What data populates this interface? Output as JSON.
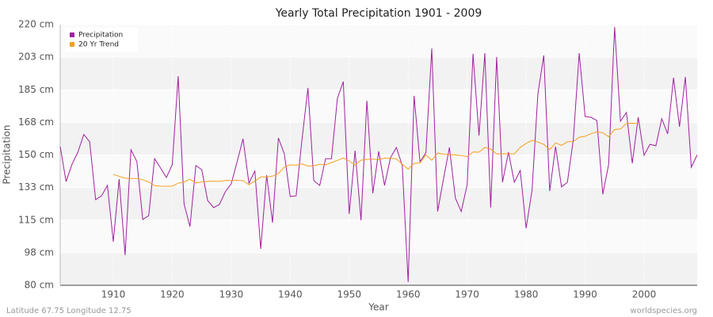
{
  "chart_data": {
    "type": "line",
    "title": "Yearly Total Precipitation 1901 - 2009",
    "xlabel": "Year",
    "ylabel": "Precipitation",
    "footer_left": "Latitude 67.75 Longitude 12.75",
    "footer_right": "worldspecies.org",
    "legend": "upper left",
    "grid": true,
    "x": [
      1901,
      1902,
      1903,
      1904,
      1905,
      1906,
      1907,
      1908,
      1909,
      1910,
      1911,
      1912,
      1913,
      1914,
      1915,
      1916,
      1917,
      1918,
      1919,
      1920,
      1921,
      1922,
      1923,
      1924,
      1925,
      1926,
      1927,
      1928,
      1929,
      1930,
      1931,
      1932,
      1933,
      1934,
      1935,
      1936,
      1937,
      1938,
      1939,
      1940,
      1941,
      1942,
      1943,
      1944,
      1945,
      1946,
      1947,
      1948,
      1949,
      1950,
      1951,
      1952,
      1953,
      1954,
      1955,
      1956,
      1957,
      1958,
      1959,
      1960,
      1961,
      1962,
      1963,
      1964,
      1965,
      1966,
      1967,
      1968,
      1969,
      1970,
      1971,
      1972,
      1973,
      1974,
      1975,
      1976,
      1977,
      1978,
      1979,
      1980,
      1981,
      1982,
      1983,
      1984,
      1985,
      1986,
      1987,
      1988,
      1989,
      1990,
      1991,
      1992,
      1993,
      1994,
      1995,
      1996,
      1997,
      1998,
      1999,
      2000,
      2001,
      2002,
      2003,
      2004,
      2005,
      2006,
      2007,
      2008,
      2009
    ],
    "series": [
      {
        "name": "Precipitation",
        "color": "#a020a0",
        "values": [
          154.5,
          135.7,
          145,
          151.5,
          161,
          157,
          126,
          128,
          133.6,
          103.4,
          137,
          96.2,
          152.8,
          146.4,
          115.3,
          117.4,
          148,
          143,
          137.9,
          144.7,
          192.3,
          123.8,
          111.5,
          144.3,
          142.1,
          125.5,
          121.7,
          123.4,
          130.2,
          134.5,
          146.4,
          158.7,
          134.9,
          141.3,
          99.6,
          139.1,
          113.6,
          159.1,
          150.6,
          127.7,
          128,
          158.3,
          186,
          136.2,
          133.6,
          148,
          148,
          180.4,
          189.4,
          118.3,
          152.3,
          114.9,
          179.1,
          129.4,
          151.9,
          133.6,
          148.5,
          154,
          144.3,
          81.7,
          181.7,
          146.4,
          151.1,
          207.2,
          119.6,
          137.4,
          154,
          126.8,
          119.6,
          134,
          204.3,
          160.4,
          204.7,
          121.7,
          202.6,
          135.3,
          151.5,
          135.3,
          141.7,
          110.6,
          131.1,
          183,
          203.4,
          130.6,
          154.5,
          132.8,
          135.3,
          158.3,
          204.7,
          170.6,
          170.2,
          168.5,
          128.9,
          145,
          218.7,
          168.1,
          172.8,
          145.5,
          170.2,
          149.8,
          155.7,
          154.9,
          169.4,
          161.3,
          191.5,
          165.1,
          191.9,
          143.4,
          150
        ]
      },
      {
        "name": "20 Yr Trend",
        "color": "#f5a020",
        "values": [
          null,
          null,
          null,
          null,
          null,
          null,
          null,
          null,
          null,
          139.5,
          138.5,
          137.5,
          137.3,
          137.3,
          136.7,
          135.5,
          133.5,
          133.2,
          133.2,
          133.2,
          134.8,
          135.5,
          137,
          135,
          135.5,
          135.8,
          135.9,
          135.8,
          136.3,
          136.2,
          136.4,
          136.2,
          134,
          136,
          138.2,
          138.2,
          138.6,
          140,
          143.5,
          144.7,
          144.5,
          145.2,
          144,
          144.2,
          145,
          144.7,
          145.9,
          147.1,
          148.4,
          146.8,
          144.5,
          147.2,
          147.6,
          147.8,
          147.5,
          148.3,
          148.2,
          147.9,
          145,
          142.4,
          145.5,
          145.7,
          150,
          147.2,
          151,
          150.4,
          150.2,
          150,
          149.7,
          149.1,
          151.6,
          151.5,
          154,
          153.2,
          150.5,
          150.6,
          150.7,
          150.5,
          154.1,
          156.2,
          157.8,
          156.9,
          155.7,
          152.8,
          156.5,
          155.1,
          157.1,
          157.2,
          159.5,
          160,
          161.4,
          162.4,
          161.9,
          159.8,
          163.6,
          163.9,
          166.9,
          167,
          166.9,
          null,
          null,
          null,
          null,
          null,
          null,
          null,
          null,
          null,
          null
        ]
      }
    ],
    "xlim": [
      1901,
      2009
    ],
    "xticks": [
      1910,
      1920,
      1930,
      1940,
      1950,
      1960,
      1970,
      1980,
      1990,
      2000
    ],
    "ylim": [
      80,
      220
    ],
    "yticks": [
      {
        "value": 80,
        "label": "80 cm"
      },
      {
        "value": 97.5,
        "label": "98 cm"
      },
      {
        "value": 115,
        "label": "115 cm"
      },
      {
        "value": 132.5,
        "label": "133 cm"
      },
      {
        "value": 150,
        "label": "150 cm"
      },
      {
        "value": 167.5,
        "label": "168 cm"
      },
      {
        "value": 185,
        "label": "185 cm"
      },
      {
        "value": 202.5,
        "label": "203 cm"
      },
      {
        "value": 220,
        "label": "220 cm"
      }
    ]
  }
}
